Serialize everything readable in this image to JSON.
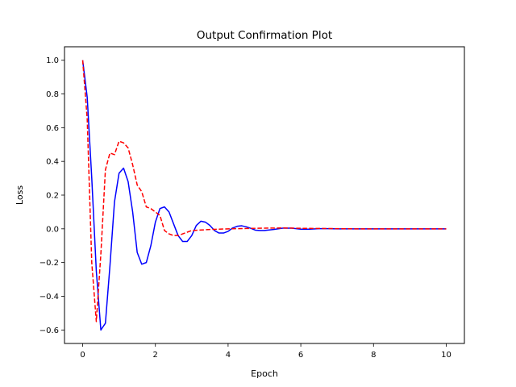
{
  "chart_data": {
    "type": "line",
    "title": "Output Confirmation Plot",
    "xlabel": "Epoch",
    "ylabel": "Loss",
    "xlim": [
      -0.5,
      10.5
    ],
    "ylim": [
      -0.68,
      1.08
    ],
    "xticks": [
      0,
      2,
      4,
      6,
      8,
      10
    ],
    "yticks": [
      -0.6,
      -0.4,
      -0.2,
      0.0,
      0.2,
      0.4,
      0.6,
      0.8,
      1.0
    ],
    "xtick_labels": [
      "0",
      "2",
      "4",
      "6",
      "8",
      "10"
    ],
    "ytick_labels": [
      "−0.6",
      "−0.4",
      "−0.2",
      "0.0",
      "0.2",
      "0.4",
      "0.6",
      "0.8",
      "1.0"
    ],
    "grid": false,
    "legend": "none",
    "series": [
      {
        "color": "#0000ff",
        "style": "solid",
        "x": [
          0,
          0.125,
          0.25,
          0.375,
          0.5,
          0.625,
          0.75,
          0.875,
          1.0,
          1.125,
          1.25,
          1.375,
          1.5,
          1.625,
          1.75,
          1.875,
          2.0,
          2.125,
          2.25,
          2.375,
          2.5,
          2.625,
          2.75,
          2.875,
          3.0,
          3.125,
          3.25,
          3.375,
          3.5,
          3.625,
          3.75,
          3.875,
          4.0,
          4.125,
          4.25,
          4.375,
          4.5,
          4.625,
          4.75,
          4.875,
          5.0,
          5.25,
          5.5,
          5.75,
          6.0,
          6.25,
          6.5,
          6.75,
          7.0,
          7.5,
          8.0,
          8.5,
          9.0,
          9.5,
          10.0
        ],
        "y": [
          1.0,
          0.78,
          0.3,
          -0.25,
          -0.6,
          -0.56,
          -0.22,
          0.16,
          0.33,
          0.36,
          0.28,
          0.1,
          -0.14,
          -0.21,
          -0.2,
          -0.1,
          0.04,
          0.12,
          0.13,
          0.1,
          0.03,
          -0.04,
          -0.075,
          -0.075,
          -0.04,
          0.02,
          0.045,
          0.04,
          0.02,
          -0.01,
          -0.025,
          -0.025,
          -0.015,
          0.005,
          0.015,
          0.018,
          0.012,
          0.003,
          -0.008,
          -0.01,
          -0.01,
          -0.004,
          0.004,
          0.004,
          -0.002,
          -0.002,
          0.001,
          0.001,
          0.0,
          0.0,
          0.0,
          0.0,
          0.0,
          0.0,
          0.0
        ]
      },
      {
        "color": "#ff0000",
        "style": "dashed",
        "x": [
          0,
          0.125,
          0.25,
          0.375,
          0.5,
          0.625,
          0.75,
          0.875,
          1.0,
          1.125,
          1.25,
          1.375,
          1.5,
          1.625,
          1.75,
          1.875,
          2.0,
          2.125,
          2.25,
          2.375,
          2.5,
          2.625,
          2.75,
          2.875,
          3.0,
          3.25,
          3.5,
          3.75,
          4.0,
          4.5,
          5.0,
          5.5,
          6.0,
          6.5,
          7.0,
          7.5,
          8.0,
          8.5,
          9.0,
          9.5,
          10.0
        ],
        "y": [
          1.0,
          0.65,
          -0.2,
          -0.55,
          -0.15,
          0.35,
          0.45,
          0.44,
          0.52,
          0.51,
          0.48,
          0.38,
          0.26,
          0.22,
          0.13,
          0.12,
          0.1,
          0.08,
          -0.01,
          -0.03,
          -0.04,
          -0.04,
          -0.03,
          -0.02,
          -0.01,
          -0.007,
          -0.004,
          -0.002,
          0.0,
          0.002,
          0.004,
          0.005,
          0.003,
          0.002,
          0.001,
          0.0,
          0.0,
          0.0,
          0.0,
          0.0,
          0.0
        ]
      }
    ]
  }
}
